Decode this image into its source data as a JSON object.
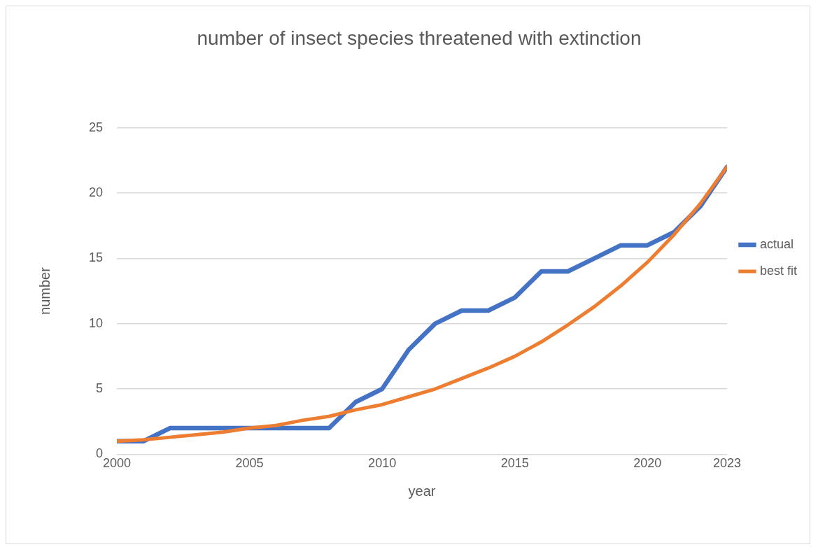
{
  "chart_data": {
    "type": "line",
    "title": "number of insect species threatened with extinction",
    "xlabel": "year",
    "ylabel": "number",
    "x": [
      2000,
      2001,
      2002,
      2003,
      2004,
      2005,
      2006,
      2007,
      2008,
      2009,
      2010,
      2011,
      2012,
      2013,
      2014,
      2015,
      2016,
      2017,
      2018,
      2019,
      2020,
      2021,
      2022,
      2023
    ],
    "series": [
      {
        "name": "actual",
        "color": "#4472c4",
        "values": [
          1,
          1,
          2,
          2,
          2,
          2,
          2,
          2,
          2,
          4,
          5,
          8,
          10,
          11,
          11,
          12,
          14,
          14,
          15,
          16,
          16,
          17,
          19,
          22
        ]
      },
      {
        "name": "best fit",
        "color": "#ed7d31",
        "values": [
          1,
          1.1,
          1.3,
          1.5,
          1.7,
          2,
          2.2,
          2.6,
          2.9,
          3.4,
          3.8,
          4.4,
          5,
          5.8,
          6.6,
          7.5,
          8.6,
          9.9,
          11.3,
          12.9,
          14.7,
          16.8,
          19.2,
          22
        ]
      }
    ],
    "xlim": [
      2000,
      2023
    ],
    "xticks": [
      2000,
      2005,
      2010,
      2015,
      2020,
      2023
    ],
    "ylim": [
      0,
      25
    ],
    "yticks": [
      0,
      5,
      10,
      15,
      20,
      25
    ],
    "grid": "y",
    "legend": "right",
    "marker": "none",
    "line_style": "solid"
  }
}
